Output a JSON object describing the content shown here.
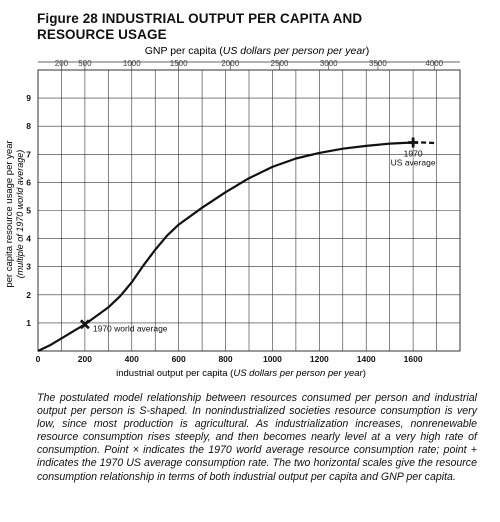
{
  "figure": {
    "title_line1": "Figure 28 INDUSTRIAL OUTPUT PER CAPITA AND",
    "title_line2": "RESOURCE USAGE",
    "caption": "The postulated model relationship between resources consumed per person and industrial output per person is S-shaped. In nonindustrialized societies resource consumption is very low, since most production is agricultural. As industrialization increases, nonrenewable resource consumption rises steeply, and then becomes nearly level at a very high rate of consumption. Point × indicates the 1970 world average resource consumption rate; point + indicates the 1970 US average consumption rate. The two horizontal scales give the resource consumption relationship in terms of both industrial output per capita and GNP per capita."
  },
  "chart_data": {
    "type": "line",
    "xlabel": "industrial output per capita (US dollars per person per year)",
    "xlabel_plain": "industrial output per capita (",
    "xlabel_italic": "US dollars per person per year",
    "xlabel_close": ")",
    "ylabel_line1": "per capita resource usage per year",
    "ylabel_line2": "(multiple of 1970 world average)",
    "top_axis_label_plain": "GNP per capita (",
    "top_axis_label_italic": "US dollars per person per year",
    "top_axis_label_close": ")",
    "xlim": [
      0,
      1800
    ],
    "ylim": [
      0,
      10
    ],
    "x_ticks": [
      0,
      200,
      400,
      600,
      800,
      1000,
      1200,
      1400,
      1600
    ],
    "x_tick_labels": [
      "0",
      "200",
      "400",
      "600",
      "800",
      "1000",
      "1200",
      "1400",
      "1600"
    ],
    "y_ticks": [
      1,
      2,
      3,
      4,
      5,
      6,
      7,
      8,
      9
    ],
    "y_tick_labels": [
      "1",
      "2",
      "3",
      "4",
      "5",
      "6",
      "7",
      "8",
      "9"
    ],
    "top_ticks": [
      {
        "x": 100,
        "label": "200"
      },
      {
        "x": 200,
        "label": "500"
      },
      {
        "x": 400,
        "label": "1000"
      },
      {
        "x": 600,
        "label": "1500"
      },
      {
        "x": 820,
        "label": "2000"
      },
      {
        "x": 1030,
        "label": "2500"
      },
      {
        "x": 1240,
        "label": "3000"
      },
      {
        "x": 1450,
        "label": "3500"
      },
      {
        "x": 1690,
        "label": "4000"
      }
    ],
    "grid": true,
    "series": [
      {
        "x": [
          0,
          50,
          100,
          150,
          200,
          250,
          300,
          350,
          400,
          450,
          500,
          550,
          600,
          700,
          800,
          900,
          1000,
          1100,
          1200,
          1300,
          1400,
          1500,
          1600
        ],
        "y": [
          0,
          0.2,
          0.45,
          0.7,
          0.95,
          1.25,
          1.55,
          1.95,
          2.45,
          3.05,
          3.6,
          4.1,
          4.5,
          5.1,
          5.65,
          6.15,
          6.55,
          6.85,
          7.05,
          7.2,
          7.3,
          7.38,
          7.42
        ]
      }
    ],
    "dashed_tail": {
      "x": [
        1600,
        1640,
        1700
      ],
      "y": [
        7.42,
        7.42,
        7.4
      ]
    },
    "markers": [
      {
        "symbol": "×",
        "x": 200,
        "y": 0.95,
        "label": "1970 world average"
      },
      {
        "symbol": "+",
        "x": 1600,
        "y": 7.42,
        "label_line1": "1970",
        "label_line2": "US average"
      }
    ],
    "colors": {
      "line": "#111111",
      "grid": "#333333",
      "background": "#ffffff"
    }
  }
}
